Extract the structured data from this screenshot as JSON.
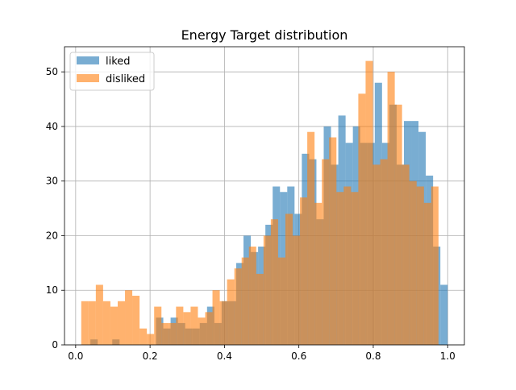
{
  "chart_data": {
    "type": "histogram",
    "title": "Energy Target distribution",
    "xlabel": "",
    "ylabel": "",
    "xlim": [
      -0.03,
      1.045
    ],
    "ylim": [
      0,
      54.6
    ],
    "xticks": [
      0.0,
      0.2,
      0.4,
      0.6,
      0.8,
      1.0
    ],
    "xtick_labels": [
      "0.0",
      "0.2",
      "0.4",
      "0.6",
      "0.8",
      "1.0"
    ],
    "yticks": [
      0,
      10,
      20,
      30,
      40,
      50
    ],
    "ytick_labels": [
      "0",
      "10",
      "20",
      "30",
      "40",
      "50"
    ],
    "grid": true,
    "legend_position": "upper-left",
    "series": [
      {
        "name": "liked",
        "color": "#1f77b4",
        "opacity": 0.6,
        "bin_start": 0.02,
        "bin_width": 0.0196,
        "counts": [
          0,
          1,
          0,
          0,
          1,
          0,
          0,
          0,
          0,
          0,
          5,
          3,
          5,
          4,
          3,
          3,
          4,
          7,
          4,
          8,
          8,
          15,
          20,
          17,
          18,
          22,
          29,
          28,
          29,
          24,
          35,
          34,
          23,
          40,
          33,
          42,
          37,
          40,
          37,
          37,
          48,
          37,
          44,
          33,
          41,
          41,
          39,
          31,
          18,
          11
        ]
      },
      {
        "name": "disliked",
        "color": "#ff7f0e",
        "opacity": 0.6,
        "bin_start": 0.015,
        "bin_width": 0.0196,
        "counts": [
          8,
          8,
          11,
          8,
          7,
          8,
          10,
          9,
          3,
          2,
          7,
          4,
          4,
          7,
          6,
          7,
          5,
          6,
          10,
          8,
          12,
          14,
          16,
          18,
          13,
          20,
          23,
          16,
          24,
          20,
          27,
          39,
          26,
          34,
          38,
          28,
          29,
          28,
          46,
          52,
          33,
          34,
          50,
          44,
          33,
          30,
          29,
          26,
          29,
          0
        ]
      }
    ]
  }
}
